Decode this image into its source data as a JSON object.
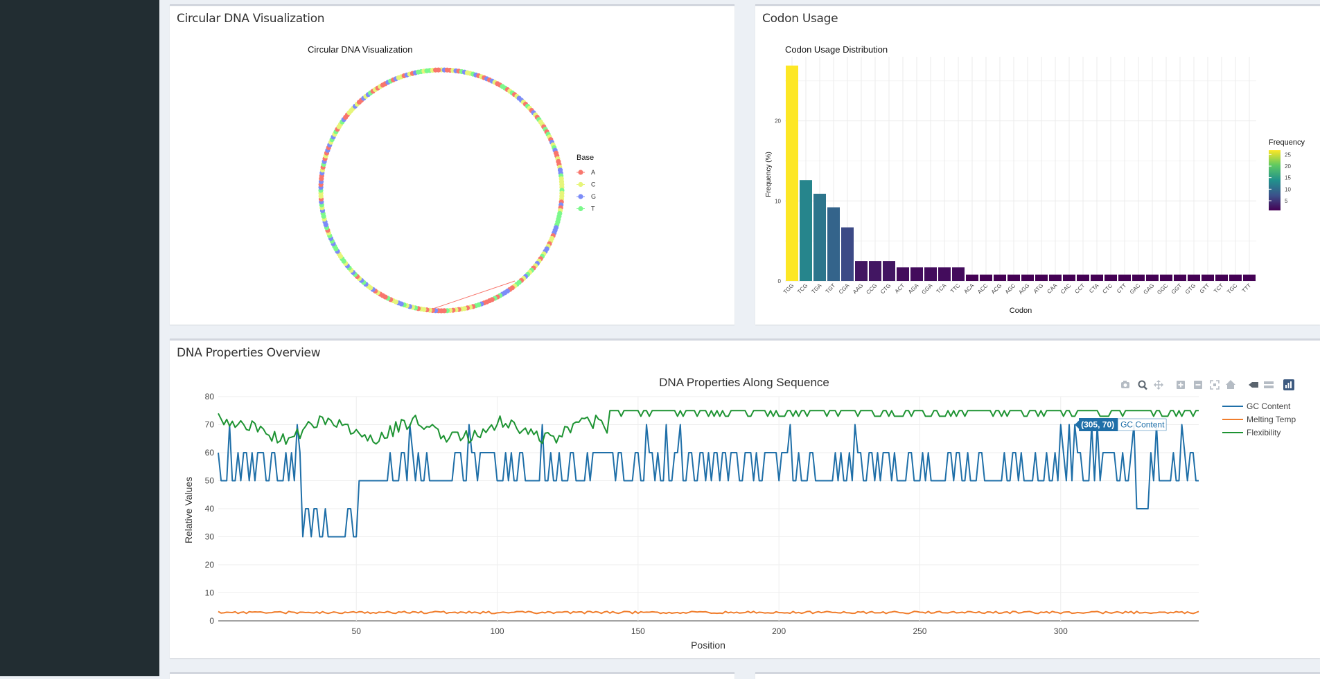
{
  "boxes": {
    "circular": {
      "title": "Circular DNA Visualization"
    },
    "codon": {
      "title": "Codon Usage"
    },
    "props": {
      "title": "DNA Properties Overview"
    }
  },
  "circular_chart": {
    "title": "Circular DNA Visualization",
    "legend_title": "Base",
    "legend": [
      {
        "label": "A",
        "color": "#f8766d"
      },
      {
        "label": "C",
        "color": "#e6f57a"
      },
      {
        "label": "G",
        "color": "#7c8cf8"
      },
      {
        "label": "T",
        "color": "#7cf88c"
      }
    ]
  },
  "chart_data": [
    {
      "type": "bar",
      "title": "Codon Usage Distribution",
      "xlabel": "Codon",
      "ylabel": "Frequency (%)",
      "ylim": [
        0,
        28
      ],
      "yticks": [
        0,
        10,
        20
      ],
      "legend_title": "Frequency",
      "legend_ticks": [
        25,
        20,
        15,
        10,
        5
      ],
      "categories": [
        "TGG",
        "TCG",
        "TGA",
        "TGT",
        "CGA",
        "AAG",
        "CCG",
        "CTG",
        "ACT",
        "AGA",
        "GGA",
        "TCA",
        "TTC",
        "ACA",
        "ACC",
        "ACG",
        "AGC",
        "AGG",
        "ATG",
        "CAA",
        "CAC",
        "CCT",
        "CTA",
        "CTC",
        "CTT",
        "GAC",
        "GAG",
        "GGC",
        "GGT",
        "GTG",
        "GTT",
        "TCT",
        "TGC",
        "TTT"
      ],
      "values": [
        26.9,
        12.6,
        10.9,
        9.2,
        6.7,
        2.5,
        2.5,
        2.5,
        1.7,
        1.7,
        1.7,
        1.7,
        1.7,
        0.8,
        0.8,
        0.8,
        0.8,
        0.8,
        0.8,
        0.8,
        0.8,
        0.8,
        0.8,
        0.8,
        0.8,
        0.8,
        0.8,
        0.8,
        0.8,
        0.8,
        0.8,
        0.8,
        0.8,
        0.8
      ]
    },
    {
      "type": "line",
      "title": "DNA Properties Along Sequence",
      "xlabel": "Position",
      "ylabel": "Relative Values",
      "xlim": [
        1,
        349
      ],
      "ylim": [
        0,
        80
      ],
      "xticks": [
        50,
        100,
        150,
        200,
        250,
        300
      ],
      "yticks": [
        0,
        10,
        20,
        30,
        40,
        50,
        60,
        70,
        80
      ],
      "grid": true,
      "legend_position": "top-right",
      "series": [
        {
          "name": "GC Content",
          "color": "#1f6fa8"
        },
        {
          "name": "Melting Temp",
          "color": "#f07d2c"
        },
        {
          "name": "Flexibility",
          "color": "#1d9332"
        }
      ],
      "tooltip": {
        "label": "(305, 70)",
        "series": "GC Content"
      }
    }
  ]
}
